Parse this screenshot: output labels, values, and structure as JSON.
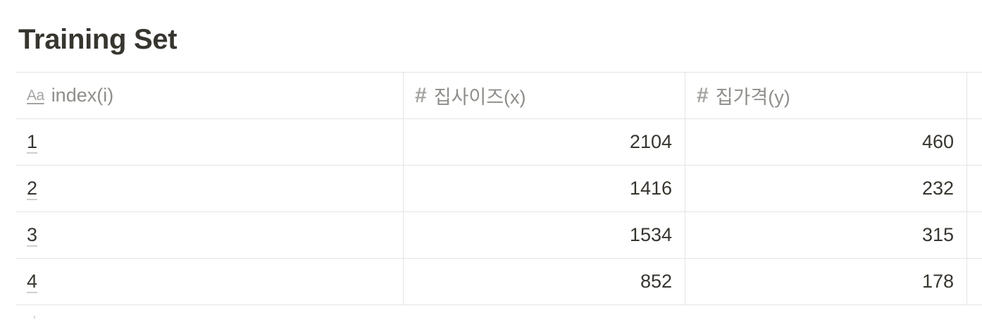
{
  "page": {
    "title": "Training Set"
  },
  "table": {
    "columns": [
      {
        "label": "index(i)",
        "icon": "text-property-icon",
        "icon_glyph": "Aa"
      },
      {
        "label": "집사이즈(x)",
        "icon": "number-property-icon",
        "icon_glyph": "#"
      },
      {
        "label": "집가격(y)",
        "icon": "number-property-icon",
        "icon_glyph": "#"
      }
    ],
    "rows": [
      {
        "index": "1",
        "size": "2104",
        "price": "460"
      },
      {
        "index": "2",
        "size": "1416",
        "price": "232"
      },
      {
        "index": "3",
        "size": "1534",
        "price": "315"
      },
      {
        "index": "4",
        "size": "852",
        "price": "178"
      }
    ]
  },
  "colors": {
    "text": "#37352f",
    "muted": "#8f8e8a",
    "border": "#e4e4e2"
  }
}
